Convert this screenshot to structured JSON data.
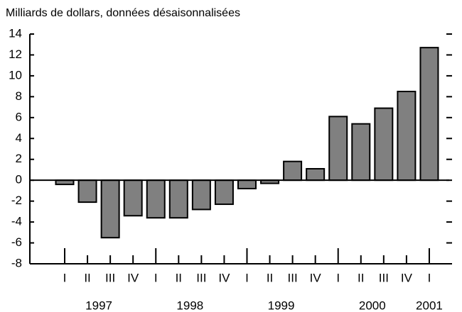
{
  "chart_data": {
    "type": "bar",
    "title": "Milliards de dollars, données désaisonnalisées",
    "categories": [
      "I",
      "II",
      "III",
      "IV",
      "I",
      "II",
      "III",
      "IV",
      "I",
      "II",
      "III",
      "IV",
      "I",
      "II",
      "III",
      "IV",
      "I"
    ],
    "years": [
      "1997",
      "1998",
      "1999",
      "2000",
      "2001"
    ],
    "values": [
      -0.4,
      -2.1,
      -5.5,
      -3.4,
      -3.6,
      -3.6,
      -2.8,
      -2.3,
      -0.8,
      -0.3,
      1.8,
      1.1,
      6.1,
      5.4,
      6.9,
      8.5,
      12.7
    ],
    "color": "#808080",
    "ylim": [
      -8,
      14
    ],
    "yticks": [
      -8,
      -6,
      -4,
      -2,
      0,
      2,
      4,
      6,
      8,
      10,
      12,
      14
    ],
    "grid": false
  }
}
